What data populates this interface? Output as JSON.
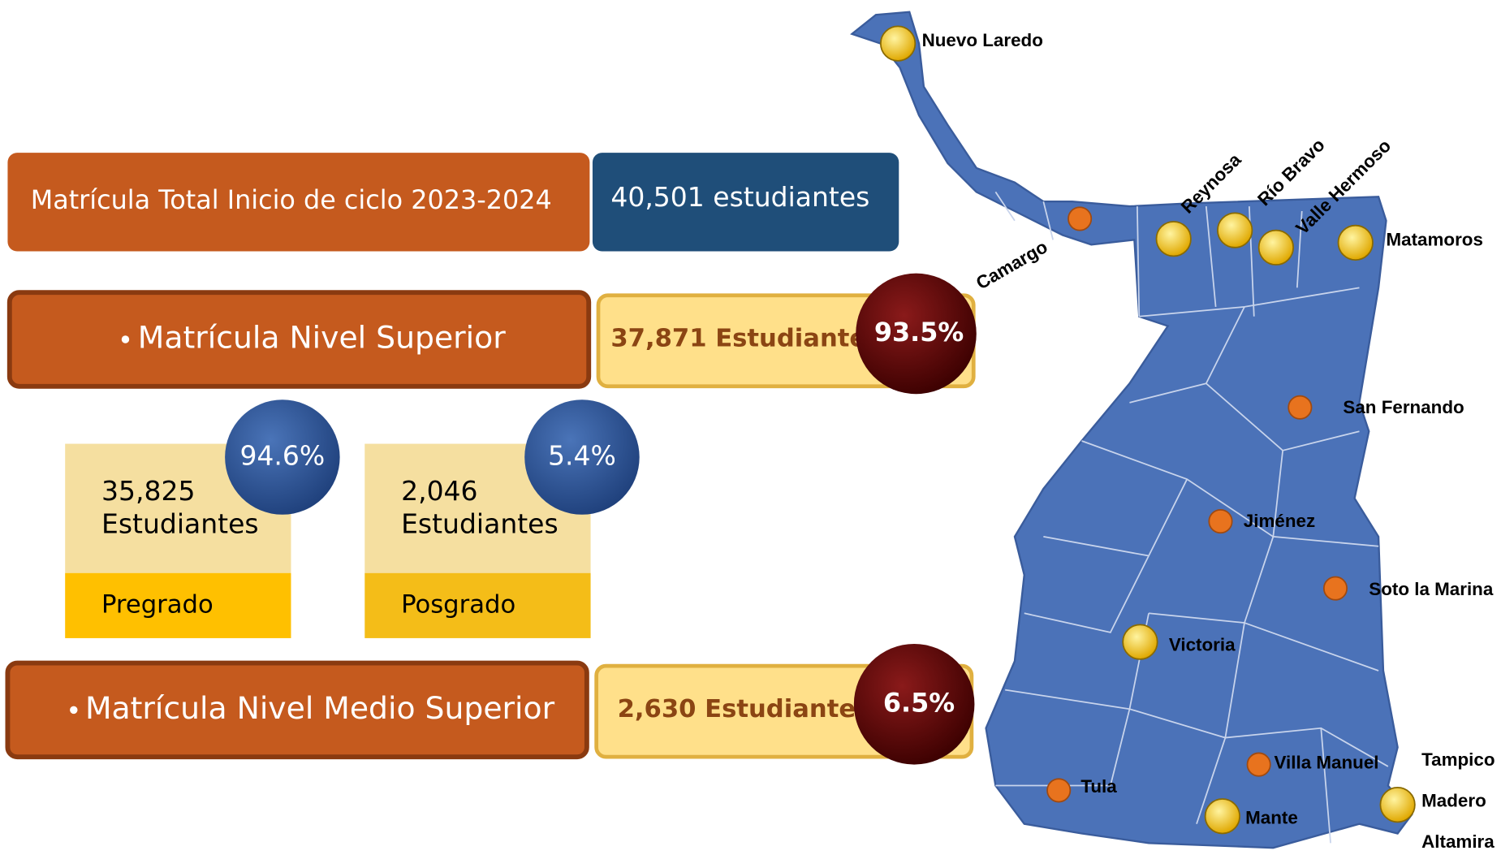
{
  "header": {
    "label": "Matrícula Total Inicio de ciclo 2023-2024",
    "value": "40,501 estudiantes"
  },
  "superior": {
    "label": "Matrícula Nivel Superior",
    "value": "37,871 Estudiantes",
    "percent": "93.5%",
    "levels": [
      {
        "count": "35,825",
        "unit": "Estudiantes",
        "label": "Pregrado",
        "percent": "94.6%"
      },
      {
        "count": "2,046",
        "unit": "Estudiantes",
        "label": "Posgrado",
        "percent": "5.4%"
      }
    ]
  },
  "medio": {
    "label": "Matrícula Nivel Medio Superior",
    "value": "2,630 Estudiantes",
    "percent": "6.5%"
  },
  "map": {
    "cities": [
      {
        "name": "Nuevo Laredo",
        "color": "#f5c800"
      },
      {
        "name": "Camargo",
        "color": "#e8731e"
      },
      {
        "name": "Reynosa",
        "color": "#f5c800"
      },
      {
        "name": "Río Bravo",
        "color": "#f5c800"
      },
      {
        "name": "Valle Hermoso",
        "color": "#f5c800"
      },
      {
        "name": "Matamoros",
        "color": "#f5c800"
      },
      {
        "name": "San Fernando",
        "color": "#e8731e"
      },
      {
        "name": "Jiménez",
        "color": "#e8731e"
      },
      {
        "name": "Soto la Marina",
        "color": "#e8731e"
      },
      {
        "name": "Victoria",
        "color": "#f5c800"
      },
      {
        "name": "Villa Manuel",
        "color": "#e8731e"
      },
      {
        "name": "Tula",
        "color": "#e8731e"
      },
      {
        "name": "Mante",
        "color": "#f5c800"
      },
      {
        "name": "Tampico"
      },
      {
        "name": "Madero",
        "color": "#f5c800"
      },
      {
        "name": "Altamira"
      }
    ]
  }
}
